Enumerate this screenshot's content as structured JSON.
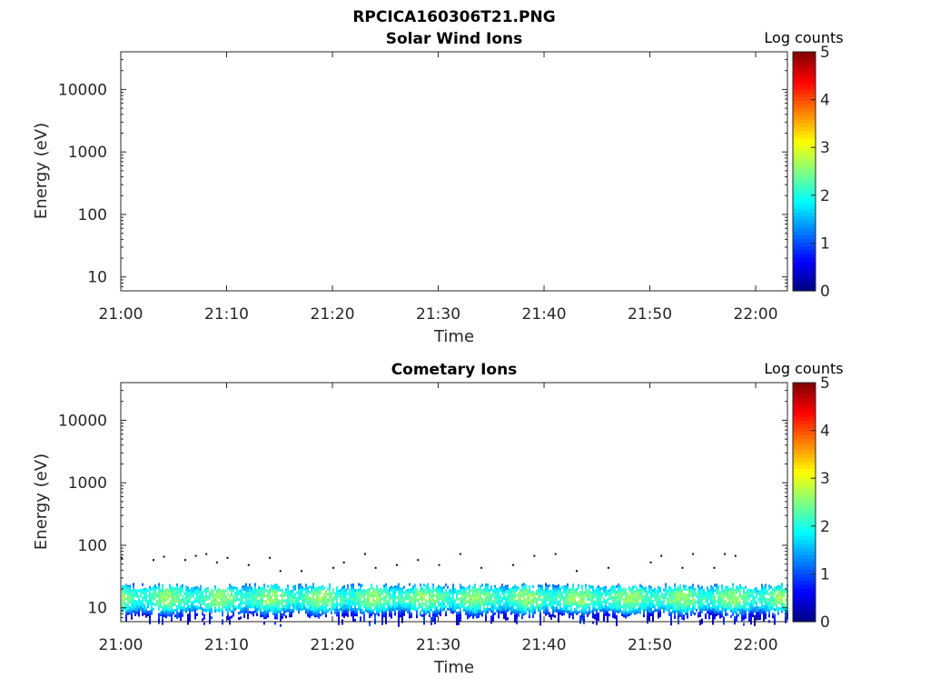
{
  "figure_title": "RPCICA160306T21.PNG",
  "panels": [
    {
      "id": "solar",
      "title": "Solar Wind Ions",
      "xlabel": "Time",
      "ylabel": "Energy (eV)",
      "x_ticks": [
        "21:00",
        "21:10",
        "21:20",
        "21:30",
        "21:40",
        "21:50",
        "22:00"
      ],
      "y_ticks": [
        "10",
        "100",
        "1000",
        "10000"
      ],
      "colorbar_label": "Log counts",
      "colorbar_ticks": [
        "0",
        "1",
        "2",
        "3",
        "4",
        "5"
      ]
    },
    {
      "id": "cometary",
      "title": "Cometary Ions",
      "xlabel": "Time",
      "ylabel": "Energy (eV)",
      "x_ticks": [
        "21:00",
        "21:10",
        "21:20",
        "21:30",
        "21:40",
        "21:50",
        "22:00"
      ],
      "y_ticks": [
        "10",
        "100",
        "1000",
        "10000"
      ],
      "colorbar_label": "Log counts",
      "colorbar_ticks": [
        "0",
        "1",
        "2",
        "3",
        "4",
        "5"
      ]
    }
  ],
  "chart_data": [
    {
      "type": "heatmap",
      "title": "Solar Wind Ions",
      "xlabel": "Time",
      "ylabel": "Energy (eV)",
      "x_range": [
        "21:00",
        "22:03"
      ],
      "y_scale": "log",
      "ylim": [
        6,
        40000
      ],
      "colorbar": {
        "label": "Log counts",
        "range": [
          0,
          5
        ],
        "colormap": "jet"
      },
      "cells": []
    },
    {
      "type": "heatmap",
      "title": "Cometary Ions",
      "xlabel": "Time",
      "ylabel": "Energy (eV)",
      "x_range": [
        "21:00",
        "22:03"
      ],
      "y_scale": "log",
      "ylim": [
        6,
        40000
      ],
      "colorbar": {
        "label": "Log counts",
        "range": [
          0,
          5
        ],
        "colormap": "jet"
      },
      "band": {
        "energy_low_eV": 7,
        "energy_high_eV": 25,
        "peak_energy_eV": 15,
        "peak_log_counts": 2.2
      },
      "sparse_counts": [
        {
          "time": "21:00",
          "energy_eV": 65
        },
        {
          "time": "21:03",
          "energy_eV": 60
        },
        {
          "time": "21:04",
          "energy_eV": 68
        },
        {
          "time": "21:06",
          "energy_eV": 60
        },
        {
          "time": "21:07",
          "energy_eV": 70
        },
        {
          "time": "21:08",
          "energy_eV": 75
        },
        {
          "time": "21:09",
          "energy_eV": 55
        },
        {
          "time": "21:10",
          "energy_eV": 65
        },
        {
          "time": "21:12",
          "energy_eV": 50
        },
        {
          "time": "21:14",
          "energy_eV": 65
        },
        {
          "time": "21:15",
          "energy_eV": 40
        },
        {
          "time": "21:17",
          "energy_eV": 40
        },
        {
          "time": "21:20",
          "energy_eV": 45
        },
        {
          "time": "21:21",
          "energy_eV": 55
        },
        {
          "time": "21:23",
          "energy_eV": 75
        },
        {
          "time": "21:24",
          "energy_eV": 45
        },
        {
          "time": "21:26",
          "energy_eV": 50
        },
        {
          "time": "21:28",
          "energy_eV": 60
        },
        {
          "time": "21:30",
          "energy_eV": 50
        },
        {
          "time": "21:32",
          "energy_eV": 75
        },
        {
          "time": "21:34",
          "energy_eV": 45
        },
        {
          "time": "21:37",
          "energy_eV": 50
        },
        {
          "time": "21:39",
          "energy_eV": 70
        },
        {
          "time": "21:41",
          "energy_eV": 75
        },
        {
          "time": "21:43",
          "energy_eV": 40
        },
        {
          "time": "21:46",
          "energy_eV": 45
        },
        {
          "time": "21:50",
          "energy_eV": 55
        },
        {
          "time": "21:51",
          "energy_eV": 70
        },
        {
          "time": "21:53",
          "energy_eV": 45
        },
        {
          "time": "21:54",
          "energy_eV": 75
        },
        {
          "time": "21:56",
          "energy_eV": 45
        },
        {
          "time": "21:57",
          "energy_eV": 75
        },
        {
          "time": "21:58",
          "energy_eV": 70
        }
      ]
    }
  ]
}
